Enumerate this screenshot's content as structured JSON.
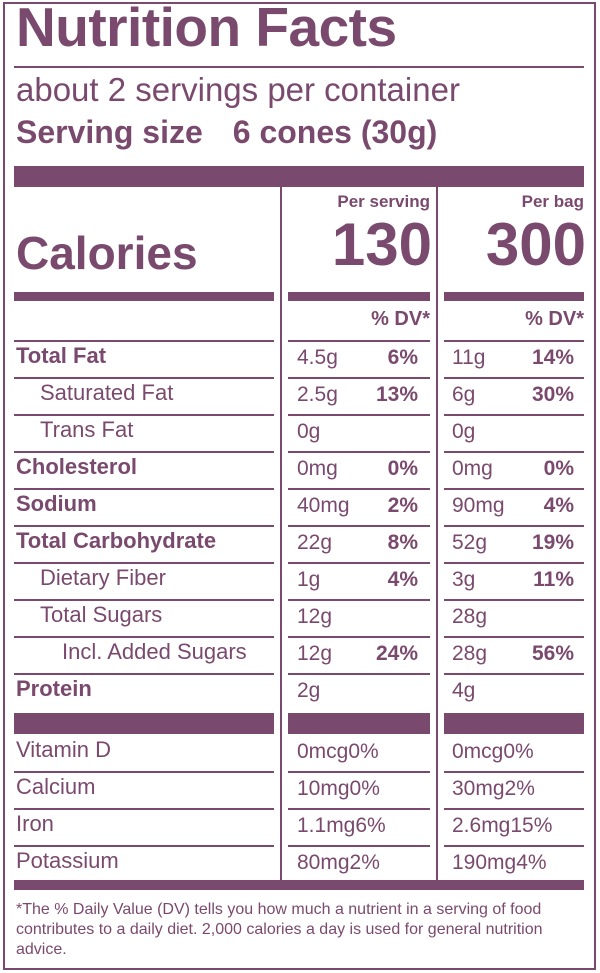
{
  "title": "Nutrition Facts",
  "servings_per_container": "about 2 servings per container",
  "serving_size": {
    "label": "Serving size",
    "value": "6 cones (30g)"
  },
  "calories": {
    "label": "Calories",
    "per_serving_head": "Per serving",
    "per_bag_head": "Per bag",
    "per_serving": "130",
    "per_bag": "300"
  },
  "dv_head": "% DV*",
  "nutrients": [
    {
      "name": "Total Fat",
      "bold": true,
      "s_amt": "4.5g",
      "s_dv": "6%",
      "b_amt": "11g",
      "b_dv": "14%"
    },
    {
      "name": "Saturated Fat",
      "bold": false,
      "s_amt": "2.5g",
      "s_dv": "13%",
      "b_amt": "6g",
      "b_dv": "30%"
    },
    {
      "name": "Trans Fat",
      "bold": false,
      "s_amt": "0g",
      "s_dv": "",
      "b_amt": "0g",
      "b_dv": ""
    },
    {
      "name": "Cholesterol",
      "bold": true,
      "s_amt": "0mg",
      "s_dv": "0%",
      "b_amt": "0mg",
      "b_dv": "0%"
    },
    {
      "name": "Sodium",
      "bold": true,
      "s_amt": "40mg",
      "s_dv": "2%",
      "b_amt": "90mg",
      "b_dv": "4%"
    },
    {
      "name": "Total Carbohydrate",
      "bold": true,
      "s_amt": "22g",
      "s_dv": "8%",
      "b_amt": "52g",
      "b_dv": "19%"
    },
    {
      "name": "Dietary Fiber",
      "bold": false,
      "s_amt": "1g",
      "s_dv": "4%",
      "b_amt": "3g",
      "b_dv": "11%"
    },
    {
      "name": "Total Sugars",
      "bold": false,
      "s_amt": "12g",
      "s_dv": "",
      "b_amt": "28g",
      "b_dv": ""
    },
    {
      "name": "Incl. Added Sugars",
      "bold": false,
      "s_amt": "12g",
      "s_dv": "24%",
      "b_amt": "28g",
      "b_dv": "56%"
    },
    {
      "name": "Protein",
      "bold": true,
      "s_amt": "2g",
      "s_dv": "",
      "b_amt": "4g",
      "b_dv": ""
    }
  ],
  "vitamins": [
    {
      "name": "Vitamin D",
      "s": "0mcg0%",
      "b": "0mcg0%"
    },
    {
      "name": "Calcium",
      "s": "10mg0%",
      "b": "30mg2%"
    },
    {
      "name": "Iron",
      "s": "1.1mg6%",
      "b": "2.6mg15%"
    },
    {
      "name": "Potassium",
      "s": "80mg2%",
      "b": "190mg4%"
    }
  ],
  "footnote": "*The % Daily Value (DV) tells you how much a nutrient in a serving of food contributes to a daily diet. 2,000 calories a day is used for general nutrition advice.",
  "colors": {
    "ink": "#7a4a6e",
    "background": "#ffffff"
  }
}
